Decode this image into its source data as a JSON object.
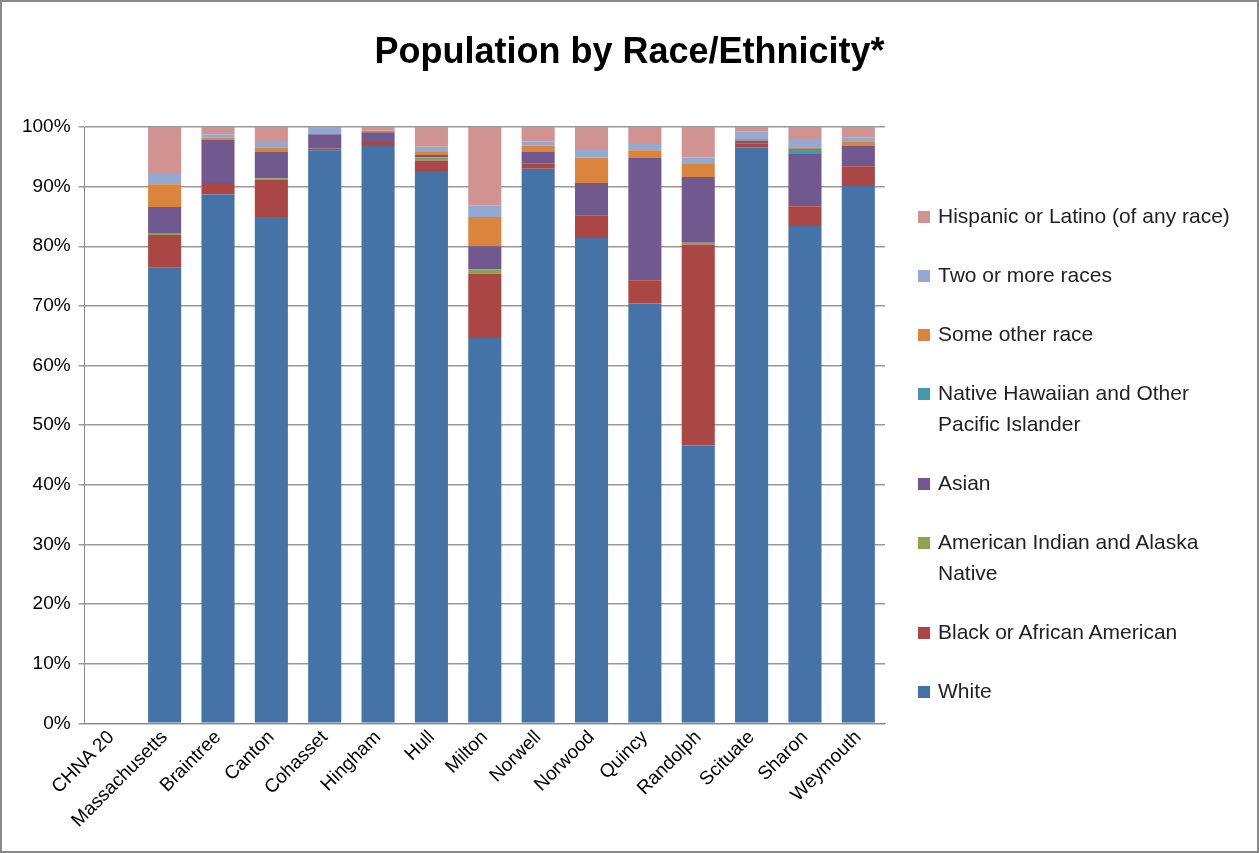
{
  "chart_data": {
    "type": "bar",
    "title": "Population by Race/Ethnicity*",
    "stacked": true,
    "categories": [
      "CHNA 20",
      "Massachusetts",
      "Braintree",
      "Canton",
      "Cohasset",
      "Hingham",
      "Hull",
      "Milton",
      "Norwell",
      "Norwood",
      "Quincy",
      "Randolph",
      "Scituate",
      "Sharon",
      "Weymouth"
    ],
    "series": [
      {
        "name": "White",
        "color": "#4572a7",
        "values": [
          null,
          76.4,
          88.7,
          84.9,
          96.1,
          96.8,
          92.6,
          64.6,
          93.0,
          81.4,
          70.4,
          46.6,
          96.6,
          83.4,
          90.1
        ]
      },
      {
        "name": "Black or African American",
        "color": "#aa4643",
        "values": [
          null,
          5.5,
          1.9,
          6.2,
          0.3,
          0.7,
          1.8,
          10.8,
          0.9,
          3.7,
          3.9,
          33.7,
          0.6,
          3.3,
          3.3
        ]
      },
      {
        "name": "American Indian and Alaska Native",
        "color": "#89a54e",
        "values": [
          null,
          0.2,
          0,
          0.3,
          0,
          0,
          0.5,
          0.7,
          0,
          0,
          0,
          0.3,
          0,
          0,
          0
        ]
      },
      {
        "name": "Asian",
        "color": "#71588f",
        "values": [
          null,
          4.5,
          7.2,
          4.4,
          2.4,
          1.6,
          0.4,
          3.9,
          2.0,
          5.5,
          20.6,
          11.0,
          0.5,
          8.9,
          3.5
        ]
      },
      {
        "name": "Native Hawaiian and Other Pacific Islander",
        "color": "#4198af",
        "values": [
          null,
          0,
          0,
          0,
          0,
          0,
          0,
          0,
          0,
          0,
          0,
          0,
          0,
          0.7,
          0
        ]
      },
      {
        "name": "Some other race",
        "color": "#db843d",
        "values": [
          null,
          3.8,
          0.4,
          0.8,
          0,
          0.3,
          0.5,
          4.9,
          1.0,
          4.3,
          1.2,
          2.2,
          0.3,
          0.3,
          0.6
        ]
      },
      {
        "name": "Two or more races",
        "color": "#93a9cf",
        "values": [
          null,
          1.7,
          0.6,
          0.9,
          1.2,
          null,
          0.9,
          1.9,
          0.7,
          1.4,
          1.2,
          1.1,
          1.3,
          1.4,
          0.7
        ]
      },
      {
        "name": "Hispanic or Latino (of any race)",
        "color": "#d19392",
        "values": [
          null,
          7.9,
          1.2,
          2.5,
          0,
          0.6,
          3.3,
          13.2,
          2.4,
          3.7,
          2.7,
          5.1,
          0.7,
          2.0,
          1.8
        ]
      }
    ],
    "ylim": [
      0,
      100
    ],
    "yticks": [
      {
        "value": 0,
        "label": "0%"
      },
      {
        "value": 10,
        "label": "10%"
      },
      {
        "value": 20,
        "label": "20%"
      },
      {
        "value": 30,
        "label": "30%"
      },
      {
        "value": 40,
        "label": "40%"
      },
      {
        "value": 50,
        "label": "50%"
      },
      {
        "value": 60,
        "label": "60%"
      },
      {
        "value": 70,
        "label": "70%"
      },
      {
        "value": 80,
        "label": "80%"
      },
      {
        "value": 90,
        "label": "90%"
      },
      {
        "value": 100,
        "label": "100%"
      }
    ],
    "grid": "y",
    "legend": "right"
  }
}
